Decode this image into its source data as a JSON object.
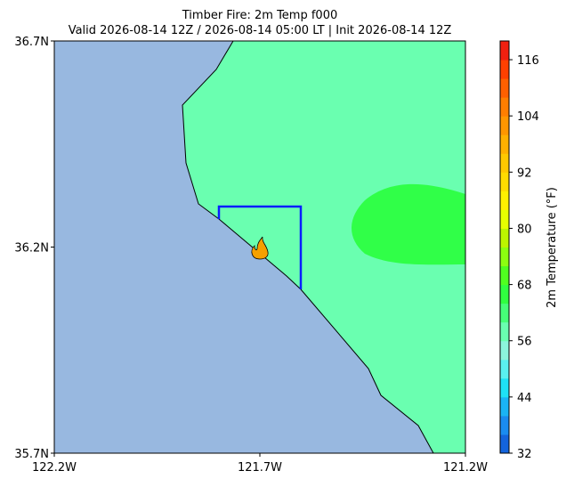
{
  "title": "Timber Fire: 2m Temp f000",
  "subtitle": "Valid 2026-08-14 12Z / 2026-08-14 05:00 LT | Init 2026-08-14 12Z",
  "map": {
    "xlim": [
      -122.2,
      -121.2
    ],
    "ylim": [
      35.7,
      36.7
    ],
    "xticks": [
      {
        "value": -122.2,
        "label": "122.2W"
      },
      {
        "value": -121.7,
        "label": "121.7W"
      },
      {
        "value": -121.2,
        "label": "121.2W"
      }
    ],
    "yticks": [
      {
        "value": 35.7,
        "label": "35.7N"
      },
      {
        "value": 36.2,
        "label": "36.2N"
      },
      {
        "value": 36.7,
        "label": "36.7N"
      }
    ]
  },
  "colorbar": {
    "label": "2m Temperature (°F)",
    "range": [
      32,
      120
    ],
    "ticks": [
      32,
      44,
      56,
      68,
      80,
      92,
      104,
      116
    ],
    "levels": [
      32,
      36,
      40,
      44,
      48,
      52,
      56,
      60,
      64,
      68,
      72,
      76,
      80,
      84,
      88,
      92,
      96,
      100,
      104,
      108,
      112,
      116,
      120
    ],
    "colors": [
      "#1464dc",
      "#1a8cf0",
      "#1ab4f5",
      "#1ee1f5",
      "#5af0f0",
      "#8cf5dc",
      "#6affb0",
      "#46ff78",
      "#30ff40",
      "#50ff20",
      "#8cff10",
      "#bcf500",
      "#e6ff00",
      "#fff000",
      "#ffdc00",
      "#ffc800",
      "#ffb000",
      "#ff9600",
      "#ff7e00",
      "#ff6000",
      "#ff4000",
      "#f02010"
    ]
  }
}
